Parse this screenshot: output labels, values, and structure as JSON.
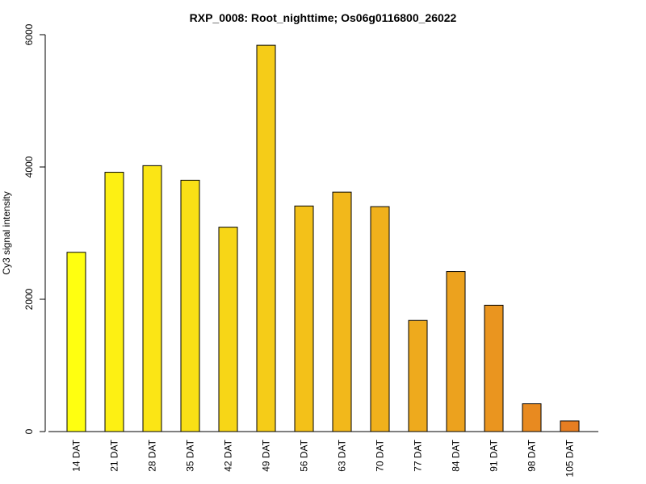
{
  "chart_data": {
    "type": "bar",
    "title": "RXP_0008: Root_nighttime; Os06g0116800_26022",
    "xlabel": "",
    "ylabel": "Cy3 signal intensity",
    "categories": [
      "14 DAT",
      "21 DAT",
      "28 DAT",
      "35 DAT",
      "42 DAT",
      "49 DAT",
      "56 DAT",
      "63 DAT",
      "70 DAT",
      "77 DAT",
      "84 DAT",
      "91 DAT",
      "98 DAT",
      "105 DAT"
    ],
    "values": [
      2710,
      3920,
      4020,
      3800,
      3090,
      5840,
      3410,
      3620,
      3400,
      1680,
      2420,
      1910,
      420,
      160
    ],
    "bar_colors": [
      "#ffff10",
      "#fdf013",
      "#fbe515",
      "#f9e016",
      "#f7d617",
      "#f5cc18",
      "#f3c119",
      "#f2b81b",
      "#f0b11c",
      "#eeaa1d",
      "#eca21e",
      "#ea951f",
      "#e88a20",
      "#e67e22"
    ],
    "ylim": [
      0,
      6000
    ],
    "yticks": [
      0,
      2000,
      4000,
      6000
    ],
    "grid": false,
    "legend": "none"
  }
}
